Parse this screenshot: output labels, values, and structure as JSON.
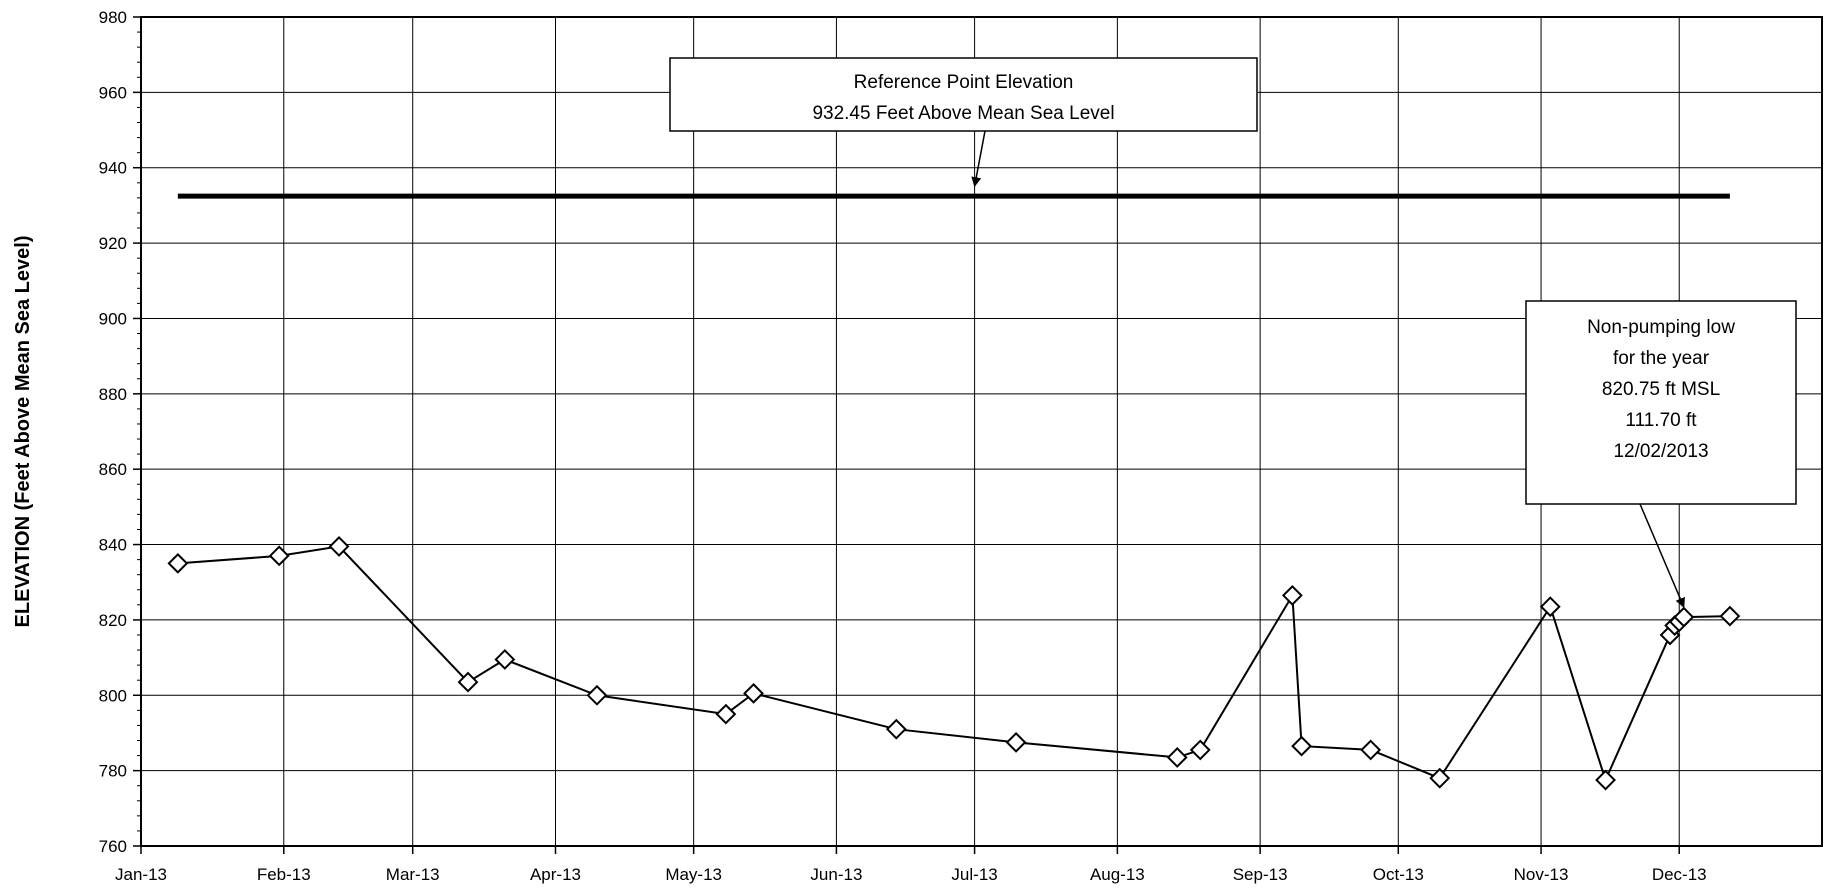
{
  "chart_data": {
    "type": "line",
    "ylabel": "ELEVATION (Feet Above Mean Sea Level)",
    "xlabel": "",
    "title": "",
    "ylim": [
      760,
      980
    ],
    "yticks": [
      760,
      780,
      800,
      820,
      840,
      860,
      880,
      900,
      920,
      940,
      960,
      980
    ],
    "xlim": [
      "2013-01-01",
      "2014-01-01"
    ],
    "xticks": [
      {
        "date": "2013-01-01",
        "label": "Jan-13"
      },
      {
        "date": "2013-02-01",
        "label": "Feb-13"
      },
      {
        "date": "2013-03-01",
        "label": "Mar-13"
      },
      {
        "date": "2013-04-01",
        "label": "Apr-13"
      },
      {
        "date": "2013-05-01",
        "label": "May-13"
      },
      {
        "date": "2013-06-01",
        "label": "Jun-13"
      },
      {
        "date": "2013-07-01",
        "label": "Jul-13"
      },
      {
        "date": "2013-08-01",
        "label": "Aug-13"
      },
      {
        "date": "2013-09-01",
        "label": "Sep-13"
      },
      {
        "date": "2013-10-01",
        "label": "Oct-13"
      },
      {
        "date": "2013-11-01",
        "label": "Nov-13"
      },
      {
        "date": "2013-12-01",
        "label": "Dec-13"
      }
    ],
    "grid": true,
    "reference_line": {
      "y": 932.45,
      "x_start": "2013-01-09",
      "x_end": "2013-12-12"
    },
    "series": [
      {
        "marker": "diamond",
        "color": "#000000",
        "points": [
          {
            "x": "2013-01-09",
            "y": 835
          },
          {
            "x": "2013-01-31",
            "y": 837
          },
          {
            "x": "2013-02-13",
            "y": 839.5
          },
          {
            "x": "2013-03-13",
            "y": 803.5
          },
          {
            "x": "2013-03-21",
            "y": 809.5
          },
          {
            "x": "2013-04-10",
            "y": 800
          },
          {
            "x": "2013-05-08",
            "y": 795
          },
          {
            "x": "2013-05-14",
            "y": 800.5
          },
          {
            "x": "2013-06-14",
            "y": 791
          },
          {
            "x": "2013-07-10",
            "y": 787.5
          },
          {
            "x": "2013-08-14",
            "y": 783.5
          },
          {
            "x": "2013-08-19",
            "y": 785.5
          },
          {
            "x": "2013-09-08",
            "y": 826.5
          },
          {
            "x": "2013-09-10",
            "y": 786.5
          },
          {
            "x": "2013-09-25",
            "y": 785.5
          },
          {
            "x": "2013-10-10",
            "y": 778
          },
          {
            "x": "2013-11-03",
            "y": 823.5
          },
          {
            "x": "2013-11-15",
            "y": 777.5
          },
          {
            "x": "2013-11-29",
            "y": 816
          },
          {
            "x": "2013-11-30",
            "y": 818.5
          },
          {
            "x": "2013-12-01",
            "y": 819.5
          },
          {
            "x": "2013-12-02",
            "y": 820.75
          },
          {
            "x": "2013-12-12",
            "y": 821
          }
        ]
      }
    ],
    "annotations": [
      {
        "lines": [
          "Reference Point Elevation",
          "932.45 Feet Above Mean Sea Level"
        ],
        "arrow_to": {
          "x": "2013-07-01",
          "y": 932.45
        }
      },
      {
        "lines": [
          "Non-pumping low",
          "for the year",
          "820.75 ft MSL",
          "111.70 ft",
          "12/02/2013"
        ],
        "arrow_to": {
          "x": "2013-12-02",
          "y": 820.75
        }
      }
    ]
  }
}
